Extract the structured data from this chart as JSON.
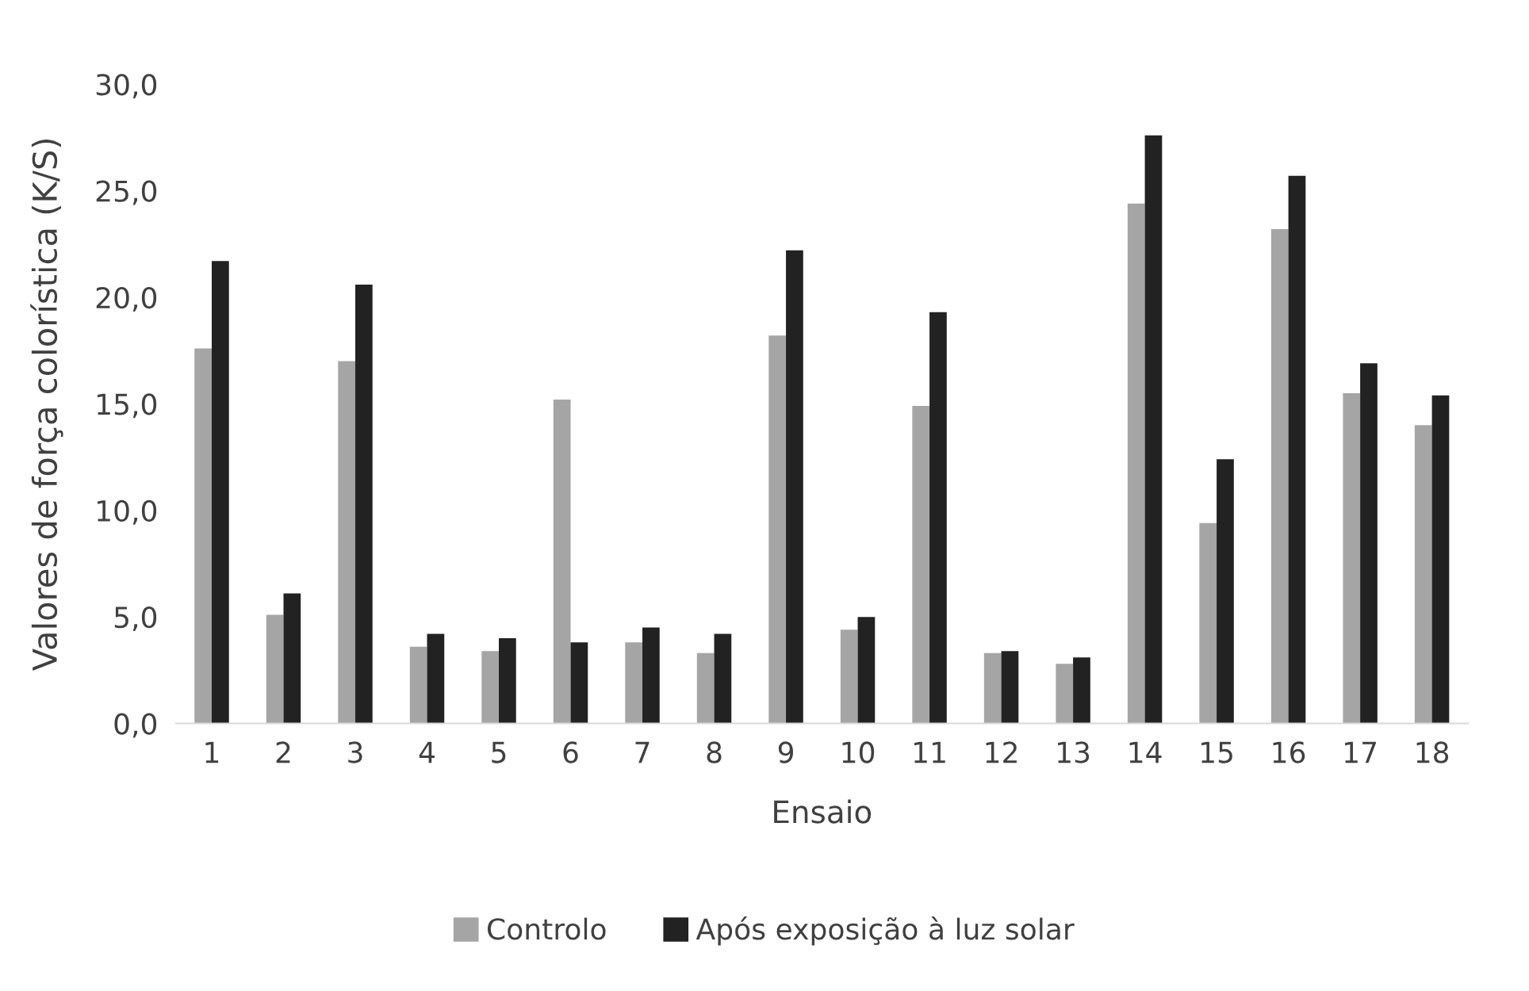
{
  "chart_data": {
    "type": "bar",
    "xlabel": "Ensaio",
    "ylabel": "Valores de força colorística (K/S)",
    "categories": [
      "1",
      "2",
      "3",
      "4",
      "5",
      "6",
      "7",
      "8",
      "9",
      "10",
      "11",
      "12",
      "13",
      "14",
      "15",
      "16",
      "17",
      "18"
    ],
    "series": [
      {
        "name": "Controlo",
        "color": "#a5a5a5",
        "values": [
          17.6,
          5.1,
          17.0,
          3.6,
          3.4,
          15.2,
          3.8,
          3.3,
          18.2,
          4.4,
          14.9,
          3.3,
          2.8,
          24.4,
          9.4,
          23.2,
          15.5,
          14.0
        ]
      },
      {
        "name": "Após exposição à luz solar",
        "color": "#222222",
        "values": [
          21.7,
          6.1,
          20.6,
          4.2,
          4.0,
          3.8,
          4.5,
          4.2,
          22.2,
          5.0,
          19.3,
          3.4,
          3.1,
          27.6,
          12.4,
          25.7,
          16.9,
          15.4
        ]
      }
    ],
    "ylim": [
      0,
      30
    ],
    "yticks": [
      {
        "value": 0,
        "label": "0,0"
      },
      {
        "value": 5,
        "label": "5,0"
      },
      {
        "value": 10,
        "label": "10,0"
      },
      {
        "value": 15,
        "label": "15,0"
      },
      {
        "value": 20,
        "label": "20,0"
      },
      {
        "value": 25,
        "label": "25,0"
      },
      {
        "value": 30,
        "label": "30,0"
      }
    ],
    "grid": false,
    "legend": "bottom"
  }
}
